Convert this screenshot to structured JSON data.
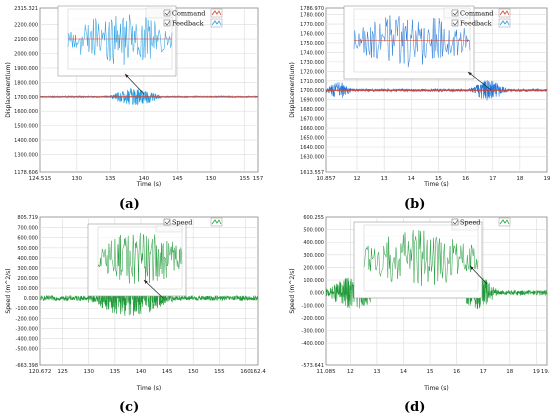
{
  "chart_data": [
    {
      "type": "line",
      "caption": "(a)",
      "xlabel": "Time (s)",
      "ylabel": "Displacement(um)",
      "xlim": [
        124.515,
        157
      ],
      "ylim": [
        1178.606,
        2315.321
      ],
      "x_ticks": [
        "124.515",
        "130",
        "135",
        "140",
        "145",
        "150",
        "155",
        "157"
      ],
      "y_ticks": [
        "2315.321",
        "2200.000",
        "2100.000",
        "2000.000",
        "1900.000",
        "1800.000",
        "1700.000",
        "1600.000",
        "1500.000",
        "1400.000",
        "1300.000",
        "1178.606"
      ],
      "legend": [
        "Command",
        "Feedback"
      ],
      "legend_colors": [
        "#e03c28",
        "#1f9be0"
      ],
      "series": [
        {
          "name": "Command",
          "color": "#e03c28",
          "baseline": 1700,
          "noise": 0
        },
        {
          "name": "Feedback",
          "color": "#1f9be0",
          "baseline": 1700,
          "noise": 6,
          "bursts": [
            {
              "x0": 135,
              "x1": 142.5,
              "amp": 60
            }
          ]
        }
      ]
    },
    {
      "type": "line",
      "caption": "(b)",
      "xlabel": "Time (s)",
      "ylabel": "Displacement(um)",
      "xlim": [
        10.857,
        19
      ],
      "ylim": [
        1613.557,
        1786.97
      ],
      "x_ticks": [
        "10.857",
        "12",
        "13",
        "14",
        "15",
        "16",
        "17",
        "18",
        "19"
      ],
      "y_ticks": [
        "1786.970",
        "1780.000",
        "1770.000",
        "1760.000",
        "1750.000",
        "1740.000",
        "1730.000",
        "1720.000",
        "1710.000",
        "1700.000",
        "1690.000",
        "1680.000",
        "1670.000",
        "1660.000",
        "1650.000",
        "1640.000",
        "1630.000",
        "1613.557"
      ],
      "legend": [
        "Command",
        "Feedback"
      ],
      "legend_colors": [
        "#e03c28",
        "#1f9be0"
      ],
      "series": [
        {
          "name": "Command",
          "color": "#e03c28",
          "baseline": 1700,
          "noise": 0
        },
        {
          "name": "Feedback",
          "color": "#1f78d8",
          "baseline": 1700,
          "noise": 1.5,
          "bursts": [
            {
              "x0": 10.857,
              "x1": 11.8,
              "amp": 9
            },
            {
              "x0": 16.2,
              "x1": 17.5,
              "amp": 11
            }
          ]
        }
      ]
    },
    {
      "type": "line",
      "caption": "(c)",
      "xlabel": "Time (s)",
      "ylabel": "Speed (m^2/s)",
      "xlim": [
        120.672,
        162.4
      ],
      "ylim": [
        -663.398,
        805.719
      ],
      "x_ticks": [
        "120.672",
        "125",
        "130",
        "135",
        "140",
        "145",
        "150",
        "155",
        "160",
        "162.4"
      ],
      "y_ticks": [
        "805.719",
        "700.000",
        "600.000",
        "500.000",
        "400.000",
        "300.000",
        "200.000",
        "100.000",
        "0.000",
        "-100.000",
        "-200.000",
        "-300.000",
        "-400.000",
        "-500.000",
        "-663.398"
      ],
      "legend": [
        "Speed"
      ],
      "legend_colors": [
        "#25a33c"
      ],
      "series": [
        {
          "name": "Speed",
          "color": "#1e9a38",
          "baseline": 0,
          "noise": 25,
          "bursts": [
            {
              "x0": 130,
              "x1": 146,
              "amp": 180
            }
          ]
        }
      ]
    },
    {
      "type": "line",
      "caption": "(d)",
      "xlabel": "Time (s)",
      "ylabel": "Speed (m^2/s)",
      "xlim": [
        11.085,
        19.4
      ],
      "ylim": [
        -573.641,
        600.255
      ],
      "x_ticks": [
        "11.085",
        "12",
        "13",
        "14",
        "15",
        "16",
        "17",
        "18",
        "19",
        "19.4"
      ],
      "y_ticks": [
        "600.255",
        "500.000",
        "400.000",
        "300.000",
        "200.000",
        "100.000",
        "0.000",
        "-100.000",
        "-200.000",
        "-300.000",
        "-400.000",
        "-573.641"
      ],
      "legend": [
        "Speed"
      ],
      "legend_colors": [
        "#25a33c"
      ],
      "series": [
        {
          "name": "Speed",
          "color": "#1e9a38",
          "baseline": 0,
          "noise": 20,
          "bursts": [
            {
              "x0": 11.085,
              "x1": 13.2,
              "amp": 130
            },
            {
              "x0": 16.1,
              "x1": 17.5,
              "amp": 140
            }
          ]
        }
      ]
    }
  ]
}
